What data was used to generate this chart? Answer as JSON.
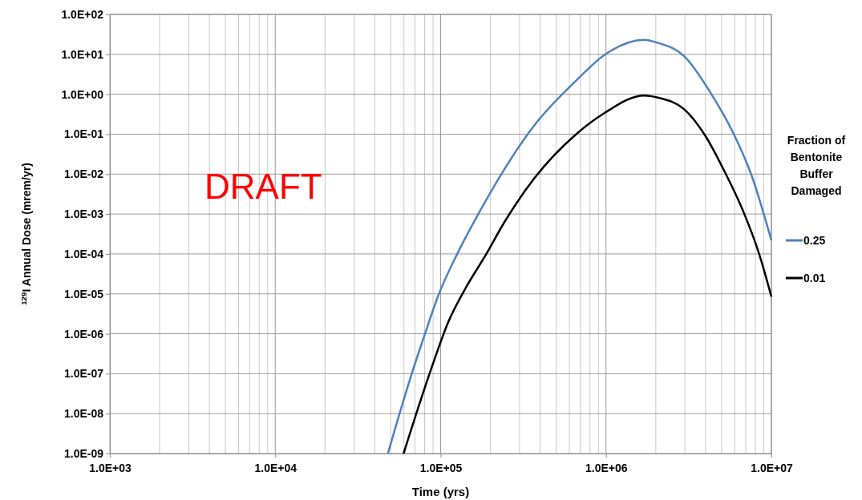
{
  "chart_data": {
    "type": "line",
    "xlabel": "Time (yrs)",
    "ylabel": "$^{129}$I Annual Dose (mrem/yr)",
    "legend_title": "Fraction of Bentonite Buffer Damaged",
    "log": "xy",
    "grid": true,
    "legend": "right",
    "marker": "none",
    "line_style": "solid",
    "xlim": [
      1000,
      10000000
    ],
    "xticks": [
      {
        "value": 1000,
        "label": "1.0E+03"
      },
      {
        "value": 10000,
        "label": "1.0E+04"
      },
      {
        "value": 100000,
        "label": "1.0E+05"
      },
      {
        "value": 1000000,
        "label": "1.0E+06"
      },
      {
        "value": 10000000,
        "label": "1.0E+07"
      }
    ],
    "ylim": [
      1e-09,
      100
    ],
    "yticks": [
      {
        "value": 1e-09,
        "label": "1.0E-09"
      },
      {
        "value": 1e-08,
        "label": "1.0E-08"
      },
      {
        "value": 1e-07,
        "label": "1.0E-07"
      },
      {
        "value": 1e-06,
        "label": "1.0E-06"
      },
      {
        "value": 1e-05,
        "label": "1.0E-05"
      },
      {
        "value": 0.0001,
        "label": "1.0E-04"
      },
      {
        "value": 0.001,
        "label": "1.0E-03"
      },
      {
        "value": 0.01,
        "label": "1.0E-02"
      },
      {
        "value": 0.1,
        "label": "1.0E-01"
      },
      {
        "value": 1,
        "label": "1.0E+00"
      },
      {
        "value": 10,
        "label": "1.0E+01"
      },
      {
        "value": 100,
        "label": "1.0E+02"
      }
    ],
    "annotations": [
      "DRAFT"
    ],
    "series": [
      {
        "name": "0.25",
        "color": "#4f81bd",
        "x": [
          48000,
          66800,
          80400,
          97000,
          126000,
          169000,
          370000,
          660000,
          980000,
          1700000,
          2050000,
          2970000,
          4310000,
          5800000,
          7540000,
          10000000
        ],
        "values": [
          1e-09,
          9.8e-08,
          9.9e-07,
          9.3e-06,
          0.0001,
          0.001,
          0.17,
          2.2,
          9.7,
          23,
          19.5,
          9,
          1.05,
          0.12,
          0.01,
          0.00022
        ]
      },
      {
        "name": "0.01",
        "color": "#000000",
        "x": [
          59700,
          86700,
          112000,
          141000,
          189000,
          241000,
          370000,
          660000,
          980000,
          1700000,
          2050000,
          2970000,
          4000000,
          5190000,
          6740000,
          8430000,
          10000000
        ],
        "values": [
          1e-09,
          1.15e-07,
          2.1e-06,
          1.35e-05,
          0.0001,
          0.00059,
          0.008,
          0.1,
          0.34,
          0.93,
          0.83,
          0.42,
          0.089,
          0.012,
          0.0012,
          0.0001,
          8.5e-06
        ]
      }
    ]
  }
}
